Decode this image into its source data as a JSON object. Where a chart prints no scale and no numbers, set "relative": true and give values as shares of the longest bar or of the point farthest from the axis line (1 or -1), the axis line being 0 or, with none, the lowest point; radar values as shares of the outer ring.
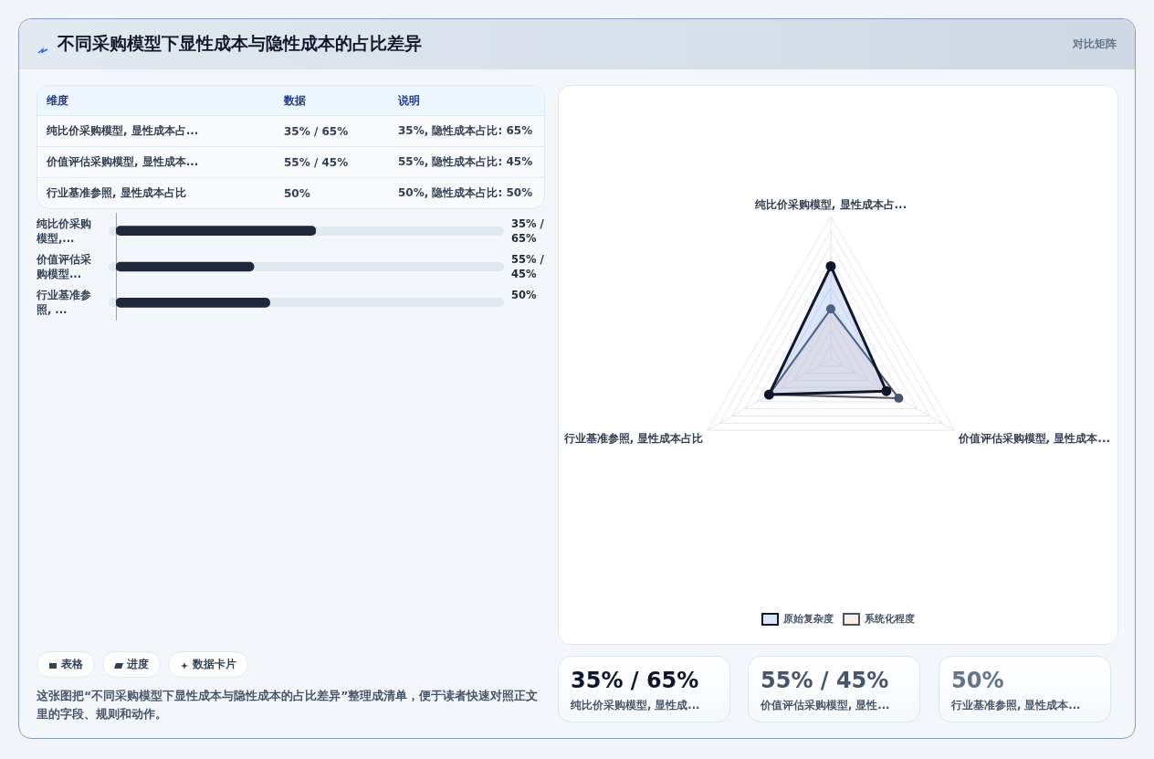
{
  "chart_data": [
    {
      "type": "other",
      "title": "不同采购模型下显性成本与隐性成本的占比差异",
      "subtitle": "对比矩阵",
      "categories": [
        "维度",
        "数据",
        "说明"
      ],
      "cell_labels": [
        [
          "纯比价采购模型, 显性成本占...",
          "35% / 65%",
          "35%, 隐性成本占比: 65%"
        ],
        [
          "价值评估采购模型, 显性成本...",
          "55% / 45%",
          "55%, 隐性成本占比: 45%"
        ],
        [
          "行业基准参照, 显性成本占比",
          "50%",
          "50%, 隐性成本占比: 50%"
        ]
      ]
    },
    {
      "type": "bar",
      "orientation": "horizontal",
      "relative": true,
      "categories": [
        "纯比价采购模型,...",
        "价值评估采购模型...",
        "行业基准参照, ..."
      ],
      "values": [
        1,
        0.69,
        0.77
      ],
      "color": "#1e293b",
      "annotations": [
        "35% / 65%",
        "55% / 45%",
        "50%"
      ]
    },
    {
      "type": "radar",
      "relative": true,
      "categories": [
        "纯比价采购模型, 显性成本占...",
        "价值评估采购模型, 显性成本...",
        "行业基准参照, 显性成本占比"
      ],
      "legend": "bottom",
      "marker": "circle",
      "series": [
        {
          "name": "原始复杂度",
          "color": "#0f172a",
          "values": [
            0.65,
            0.45,
            0.5
          ]
        },
        {
          "name": "系统化程度",
          "color": "#475569",
          "values": [
            0.35,
            0.55,
            0.5
          ]
        }
      ]
    },
    {
      "type": "other",
      "annotations": [
        "35% / 65%",
        "纯比价采购模型, 显性成...",
        "55% / 45%",
        "价值评估采购模型, 显性...",
        "50%",
        "行业基准参照, 显性成本..."
      ]
    },
    {
      "type": "other",
      "categories": [
        "表格",
        "进度",
        "数据卡片"
      ],
      "annotations": [
        "这张图把“不同采购模型下显性成本与隐性成本的占比差异”整理成清单，便于读者快速对照正文里的字段、规则和动作。"
      ]
    }
  ]
}
